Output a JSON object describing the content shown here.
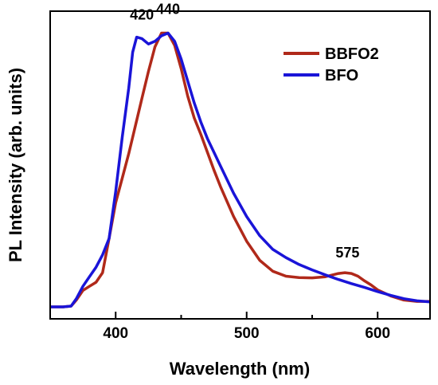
{
  "chart_data": {
    "type": "line",
    "title": "",
    "xlabel": "Wavelength (nm)",
    "ylabel": "PL Intensity (arb. units)",
    "xlim": [
      350,
      640
    ],
    "ylim": [
      0,
      1.08
    ],
    "x_ticks": [
      400,
      500,
      600
    ],
    "y_ticks_labeled": false,
    "grid": false,
    "legend_position": "top-right",
    "series": [
      {
        "name": "BBFO2",
        "color": "#b0291a",
        "x": [
          350,
          360,
          366,
          370,
          375,
          380,
          385,
          390,
          395,
          400,
          405,
          410,
          415,
          420,
          425,
          430,
          435,
          440,
          445,
          450,
          455,
          460,
          465,
          470,
          475,
          480,
          490,
          500,
          510,
          520,
          530,
          540,
          550,
          560,
          570,
          575,
          580,
          585,
          590,
          595,
          600,
          610,
          620,
          630,
          640
        ],
        "y": [
          0.0,
          0.0,
          0.003,
          0.025,
          0.06,
          0.075,
          0.09,
          0.125,
          0.25,
          0.38,
          0.47,
          0.56,
          0.66,
          0.76,
          0.86,
          0.95,
          1.0,
          1.0,
          0.955,
          0.87,
          0.77,
          0.69,
          0.63,
          0.565,
          0.5,
          0.44,
          0.33,
          0.24,
          0.17,
          0.13,
          0.112,
          0.107,
          0.106,
          0.11,
          0.122,
          0.125,
          0.122,
          0.112,
          0.095,
          0.08,
          0.062,
          0.04,
          0.025,
          0.02,
          0.02
        ]
      },
      {
        "name": "BFO",
        "color": "#1a14d8",
        "x": [
          350,
          360,
          366,
          370,
          375,
          380,
          385,
          390,
          395,
          400,
          405,
          410,
          413,
          416,
          420,
          425,
          430,
          435,
          440,
          445,
          450,
          455,
          460,
          465,
          470,
          475,
          480,
          490,
          500,
          510,
          520,
          530,
          540,
          550,
          560,
          570,
          580,
          590,
          600,
          610,
          620,
          630,
          640
        ],
        "y": [
          0.0,
          0.0,
          0.003,
          0.03,
          0.075,
          0.11,
          0.145,
          0.19,
          0.25,
          0.42,
          0.62,
          0.8,
          0.93,
          0.985,
          0.98,
          0.96,
          0.97,
          0.99,
          1.0,
          0.97,
          0.905,
          0.825,
          0.745,
          0.675,
          0.615,
          0.565,
          0.515,
          0.415,
          0.33,
          0.26,
          0.21,
          0.18,
          0.155,
          0.135,
          0.117,
          0.1,
          0.085,
          0.071,
          0.056,
          0.042,
          0.03,
          0.022,
          0.018
        ]
      }
    ],
    "annotations": [
      {
        "text": "420",
        "x": 420,
        "y": 1.05
      },
      {
        "text": "440",
        "x": 440,
        "y": 1.07
      },
      {
        "text": "575",
        "x": 577,
        "y": 0.18
      }
    ]
  }
}
